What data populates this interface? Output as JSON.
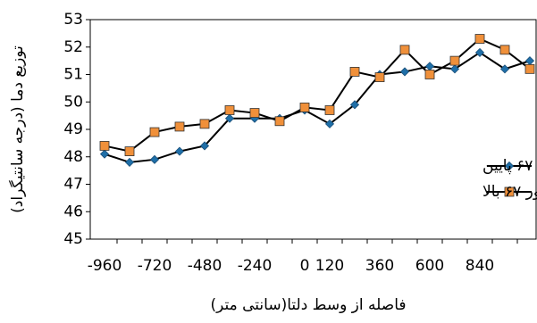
{
  "chart_data": {
    "type": "line",
    "y_label": "توزیع دما (درجه سانتیگراد)",
    "x_label": "فاصله از وسط دلتا(سانتی متر)",
    "categories": [
      "-960",
      null,
      "-720",
      null,
      "-480",
      null,
      "-240",
      null,
      "0",
      "120",
      null,
      "360",
      null,
      "600",
      null,
      "840",
      null,
      null
    ],
    "series": [
      {
        "name": "رادیاتور ۶۷ پایین",
        "color": "#1f6fa8",
        "marker": "diamond",
        "values": [
          48.1,
          47.8,
          47.9,
          48.2,
          48.4,
          49.4,
          49.4,
          49.4,
          49.7,
          49.2,
          49.9,
          51.0,
          51.1,
          51.3,
          51.2,
          51.8,
          51.2,
          51.5
        ]
      },
      {
        "name": "رادیاتور ۶۷ بالا",
        "color": "#f0903a",
        "marker": "square",
        "values": [
          48.4,
          48.2,
          48.9,
          49.1,
          49.2,
          49.7,
          49.6,
          49.3,
          49.8,
          49.7,
          51.1,
          50.9,
          51.9,
          51.0,
          51.5,
          52.3,
          51.9,
          51.2
        ]
      }
    ],
    "ylim": [
      45,
      53
    ],
    "yticks": [
      45,
      46,
      47,
      48,
      49,
      50,
      51,
      52,
      53
    ]
  }
}
